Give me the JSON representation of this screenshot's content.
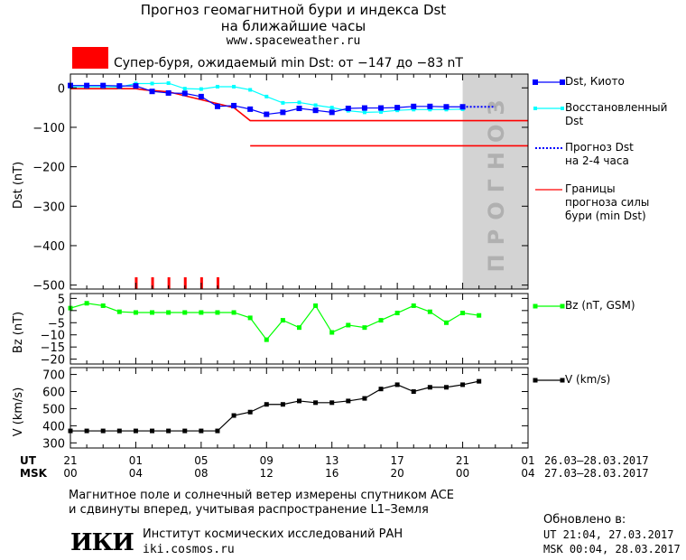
{
  "header": {
    "title_line1": "Прогноз геомагнитной бури и индекса Dst",
    "title_line2": "на ближайшие часы",
    "url": "www.spaceweather.ru"
  },
  "storm_alert": {
    "text": "Супер-буря, ожидаемый min Dst: от −147 до −83 nT",
    "color": "#ff0000"
  },
  "legend": {
    "dst_kyoto": "Dst, Киото",
    "dst_restored_1": "Восстановленный",
    "dst_restored_2": "Dst",
    "forecast_1": "Прогноз Dst",
    "forecast_2": "на 2-4 часа",
    "bounds_1": "Границы",
    "bounds_2": "прогноза силы",
    "bounds_3": "бури (min Dst)",
    "bz": "Bz (nT, GSM)",
    "v": "V (km/s)"
  },
  "forecast_band_label": "ПРОГНОЗ",
  "axis_labels": {
    "dst": "Dst (nT)",
    "bz": "Bz (nT)",
    "v": "V (km/s)"
  },
  "time_axis": {
    "ut_label": "UT",
    "msk_label": "MSK",
    "ut_ticks": [
      "21",
      "01",
      "05",
      "09",
      "13",
      "17",
      "21",
      "01"
    ],
    "msk_ticks": [
      "00",
      "04",
      "08",
      "12",
      "16",
      "20",
      "00",
      "04"
    ],
    "ut_range": "26.03–28.03.2017",
    "msk_range": "27.03–28.03.2017"
  },
  "footer": {
    "note_line1": "Магнитное поле и солнечный ветер измерены спутником ACE",
    "note_line2": "и сдвинуты вперед, учитывая распространение L1–Земля",
    "institute_name": "Институт космических исследований РАН",
    "institute_url": "iki.cosmos.ru",
    "logo_text": "ИКИ",
    "updated_label": "Обновлено в:",
    "updated_ut": "UT  21:04, 27.03.2017",
    "updated_msk": "MSK 00:04, 28.03.2017"
  },
  "chart_data": [
    {
      "type": "line",
      "panel": "dst",
      "x_unit": "hours since 21 UT 26.03.2017",
      "xlim": [
        0,
        28
      ],
      "ylim": [
        -510,
        35
      ],
      "yticks": [
        0,
        -100,
        -200,
        -300,
        -400,
        -500
      ],
      "ylabel": "Dst (nT)",
      "forecast_region": [
        24,
        28
      ],
      "series": [
        {
          "name": "Dst, Киото",
          "color": "#0000ff",
          "x": [
            0,
            1,
            2,
            3,
            4,
            5,
            6,
            7,
            8,
            9,
            10,
            11,
            12,
            13,
            14,
            15,
            16,
            17,
            18,
            19,
            20,
            21,
            22,
            23,
            24
          ],
          "y": [
            6,
            6,
            6,
            5,
            5,
            -9,
            -13,
            -14,
            -22,
            -47,
            -45,
            -54,
            -67,
            -62,
            -52,
            -57,
            -62,
            -52,
            -51,
            -51,
            -50,
            -47,
            -47,
            -48,
            -48
          ]
        },
        {
          "name": "Восстановленный Dst",
          "color": "#00ffff",
          "x": [
            0,
            1,
            2,
            3,
            4,
            5,
            6,
            7,
            8,
            9,
            10,
            11,
            12,
            13,
            14,
            15,
            16,
            17,
            18,
            19,
            20,
            21,
            22,
            23,
            24
          ],
          "y": [
            3,
            3,
            3,
            2,
            11,
            11,
            12,
            -2,
            -3,
            3,
            3,
            -5,
            -22,
            -38,
            -37,
            -44,
            -50,
            -58,
            -62,
            -61,
            -57,
            -55,
            -55,
            -55,
            -54
          ]
        },
        {
          "name": "Прогноз Dst на 2-4 часа",
          "color": "#0000ff",
          "style": "dotted",
          "x": [
            24,
            26
          ],
          "y": [
            -48,
            -48
          ]
        },
        {
          "name": "Границы прогноза силы бури (min Dst)",
          "color": "#ff0000",
          "upper": {
            "x": [
              0,
              4,
              4.5,
              6,
              8,
              10,
              11,
              28
            ],
            "y": [
              -2,
              -2,
              -5,
              -10,
              -30,
              -50,
              -83,
              -83
            ]
          },
          "lower": {
            "x": [
              11,
              28
            ],
            "y": [
              -147,
              -147
            ]
          }
        }
      ],
      "storm_marks_x": [
        4,
        5,
        6,
        7,
        8,
        9
      ]
    },
    {
      "type": "line",
      "panel": "bz",
      "name": "Bz (nT, GSM)",
      "color": "#00ff00",
      "ylim": [
        -22,
        7
      ],
      "yticks": [
        5,
        0,
        -5,
        -10,
        -15,
        -20
      ],
      "ylabel": "Bz (nT)",
      "x": [
        0,
        1,
        2,
        3,
        4,
        5,
        6,
        7,
        8,
        9,
        10,
        11,
        12,
        13,
        14,
        15,
        16,
        17,
        18,
        19,
        20,
        21,
        22,
        23,
        24,
        25
      ],
      "y": [
        1,
        3,
        2,
        -0.5,
        -0.8,
        -0.8,
        -0.8,
        -0.8,
        -0.8,
        -0.8,
        -0.8,
        -3,
        -12,
        -4,
        -7,
        2,
        -9,
        -6,
        -7,
        -4,
        -1,
        2,
        -0.5,
        -5,
        -1,
        -2
      ]
    },
    {
      "type": "line",
      "panel": "v",
      "name": "V (km/s)",
      "color": "#000000",
      "ylim": [
        270,
        740
      ],
      "yticks": [
        300,
        400,
        500,
        600,
        700
      ],
      "ylabel": "V (km/s)",
      "x": [
        0,
        1,
        2,
        3,
        4,
        5,
        6,
        7,
        8,
        9,
        10,
        11,
        12,
        13,
        14,
        15,
        16,
        17,
        18,
        19,
        20,
        21,
        22,
        23,
        24,
        25
      ],
      "y": [
        370,
        370,
        370,
        370,
        370,
        370,
        370,
        370,
        370,
        370,
        460,
        480,
        525,
        525,
        545,
        535,
        535,
        545,
        560,
        615,
        640,
        600,
        625,
        625,
        640,
        660
      ]
    }
  ]
}
